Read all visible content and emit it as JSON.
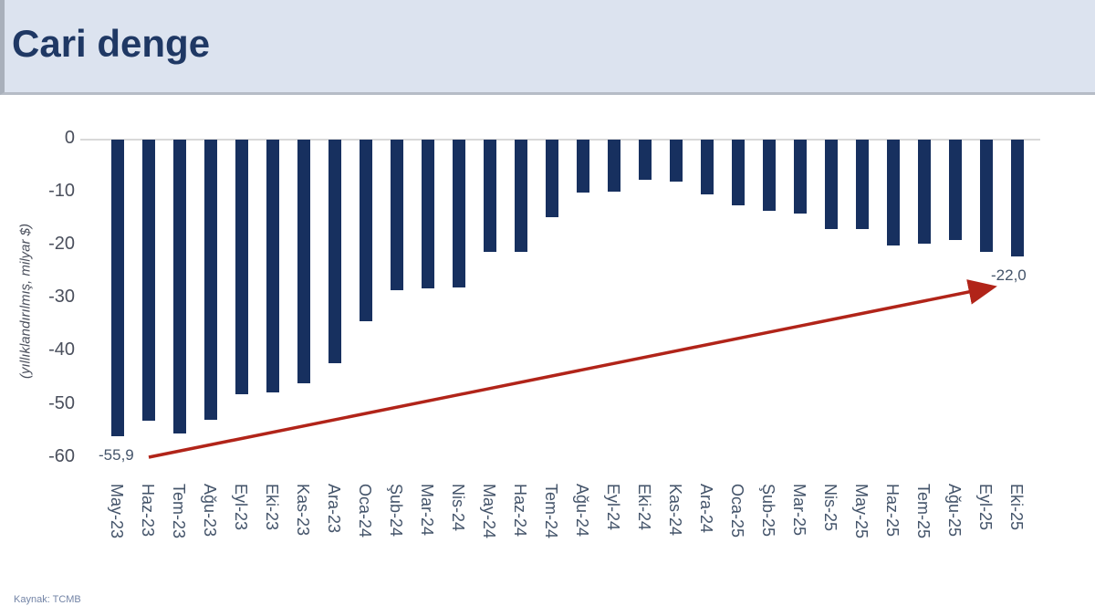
{
  "page": {
    "title": "Cari denge"
  },
  "footer": {
    "source": "Kaynak: TCMB"
  },
  "colors": {
    "header_bg": "#dce3ef",
    "header_border": "#b6bcc6",
    "title_text": "#1f3864",
    "bar": "#17305f",
    "arrow": "#b12419",
    "axis_text": "#44546a",
    "tick_text": "#4a4f5c",
    "annotation_text": "#44546a",
    "zero_line": "#d9d9d9",
    "source_text": "#7384a6"
  },
  "chart_data": {
    "type": "bar",
    "title": "Cari denge",
    "ylabel": "(yıllıklandırılmış, milyar $)",
    "xlabel": "",
    "ylim": [
      -60,
      0
    ],
    "yticks": [
      0,
      -10,
      -20,
      -30,
      -40,
      -50,
      -60
    ],
    "grid": false,
    "legend": "none",
    "categories": [
      "May-23",
      "Haz-23",
      "Tem-23",
      "Ağu-23",
      "Eyl-23",
      "Eki-23",
      "Kas-23",
      "Ara-23",
      "Oca-24",
      "Şub-24",
      "Mar-24",
      "Nis-24",
      "May-24",
      "Haz-24",
      "Tem-24",
      "Ağu-24",
      "Eyl-24",
      "Eki-24",
      "Kas-24",
      "Ara-24",
      "Oca-25",
      "Şub-25",
      "Mar-25",
      "Nis-25",
      "May-25",
      "Haz-25",
      "Tem-25",
      "Ağu-25",
      "Eyl-25",
      "Eki-25"
    ],
    "values": [
      -55.9,
      -53.0,
      -55.5,
      -52.9,
      -48.0,
      -47.6,
      -46.0,
      -42.1,
      -34.3,
      -28.4,
      -28.0,
      -27.9,
      -21.1,
      -21.2,
      -14.7,
      -10.0,
      -9.8,
      -7.5,
      -7.9,
      -10.4,
      -12.4,
      -13.4,
      -13.9,
      -16.8,
      -16.8,
      -20.0,
      -19.7,
      -19.0,
      -21.2,
      -22.0
    ],
    "annotations": [
      {
        "text": "-55,9",
        "index": 0
      },
      {
        "text": "-22,0",
        "index": 29
      }
    ],
    "trend_arrow": {
      "direction": "up-right",
      "color": "#b12419"
    }
  }
}
